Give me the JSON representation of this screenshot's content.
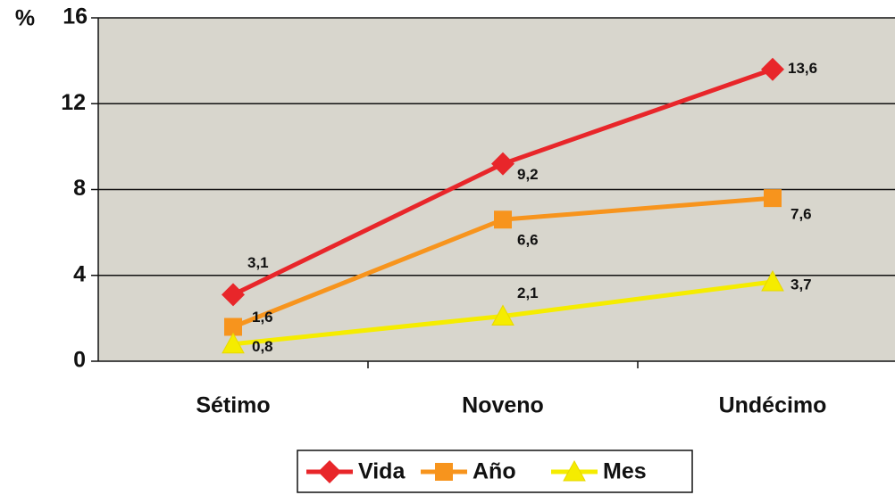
{
  "chart_data": {
    "type": "line",
    "y_label": "%",
    "categories": [
      "Sétimo",
      "Noveno",
      "Undécimo"
    ],
    "series": [
      {
        "name": "Vida",
        "color": "#e8262a",
        "marker": "diamond",
        "values": [
          3.1,
          9.2,
          13.6
        ],
        "value_labels": [
          "3,1",
          "9,2",
          "13,6"
        ]
      },
      {
        "name": "Año",
        "color": "#f7941d",
        "marker": "square",
        "values": [
          1.6,
          6.6,
          7.6
        ],
        "value_labels": [
          "1,6",
          "6,6",
          "7,6"
        ]
      },
      {
        "name": "Mes",
        "color": "#f5ec00",
        "marker": "triangle",
        "values": [
          0.8,
          2.1,
          3.7
        ],
        "value_labels": [
          "0,8",
          "2,1",
          "3,7"
        ]
      }
    ],
    "ylim": [
      0,
      16
    ],
    "yticks": [
      0,
      4,
      8,
      12,
      16
    ],
    "grid": true,
    "legend": "bottom"
  }
}
